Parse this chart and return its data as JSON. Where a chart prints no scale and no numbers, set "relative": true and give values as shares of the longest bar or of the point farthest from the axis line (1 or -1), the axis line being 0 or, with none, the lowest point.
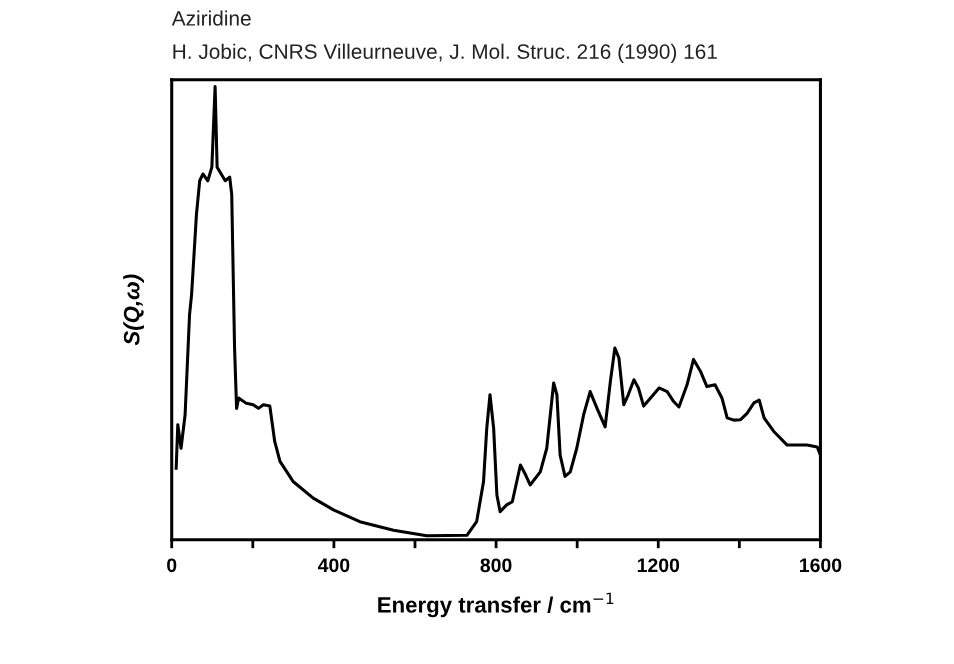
{
  "chart_data": {
    "type": "line",
    "title": "Aziridine",
    "subtitle": "H. Jobic, CNRS Villeurneuve, J. Mol. Struc. 216 (1990) 161",
    "xlabel": "Energy transfer / cm$^{−1}$",
    "ylabel": "S(Q,ω)",
    "relative": true,
    "xlim": [
      0,
      1600
    ],
    "xticks": [
      0,
      {
        "value": 200,
        "label": null
      },
      400,
      {
        "value": 600,
        "label": null
      },
      800,
      {
        "value": 1000,
        "label": null
      },
      1200,
      {
        "value": 1400,
        "label": null
      },
      1600
    ],
    "tick_labels": "x",
    "grid": false,
    "legend": false,
    "marker": "none",
    "line_style": "solid",
    "series": [
      {
        "color": "#000000",
        "x": [
          11,
          15,
          23,
          33,
          44,
          49,
          61,
          69,
          77,
          89,
          99,
          107,
          112,
          122,
          132,
          143,
          148,
          155,
          160,
          165,
          184,
          201,
          214,
          226,
          242,
          254,
          267,
          300,
          349,
          399,
          464,
          547,
          629,
          728,
          752,
          769,
          777,
          785,
          794,
          802,
          810,
          826,
          840,
          860,
          873,
          884,
          909,
          925,
          942,
          950,
          958,
          970,
          983,
          999,
          1016,
          1032,
          1049,
          1069,
          1082,
          1093,
          1103,
          1115,
          1126,
          1140,
          1151,
          1164,
          1181,
          1202,
          1222,
          1238,
          1251,
          1271,
          1287,
          1304,
          1320,
          1340,
          1357,
          1370,
          1386,
          1403,
          1419,
          1436,
          1449,
          1461,
          1485,
          1518,
          1567,
          1592,
          1600
        ],
        "values": [
          0.158,
          0.254,
          0.202,
          0.276,
          0.497,
          0.541,
          0.718,
          0.792,
          0.807,
          0.792,
          0.822,
          1,
          0.822,
          0.807,
          0.792,
          0.8,
          0.762,
          0.423,
          0.29,
          0.313,
          0.301,
          0.298,
          0.29,
          0.298,
          0.295,
          0.217,
          0.173,
          0.128,
          0.092,
          0.066,
          0.04,
          0.021,
          0.009,
          0.01,
          0.04,
          0.128,
          0.246,
          0.32,
          0.246,
          0.099,
          0.062,
          0.077,
          0.084,
          0.165,
          0.143,
          0.121,
          0.15,
          0.202,
          0.346,
          0.32,
          0.187,
          0.14,
          0.15,
          0.202,
          0.276,
          0.327,
          0.29,
          0.249,
          0.35,
          0.423,
          0.401,
          0.298,
          0.32,
          0.353,
          0.335,
          0.295,
          0.313,
          0.335,
          0.327,
          0.305,
          0.293,
          0.342,
          0.398,
          0.372,
          0.338,
          0.342,
          0.313,
          0.269,
          0.264,
          0.265,
          0.279,
          0.302,
          0.308,
          0.269,
          0.239,
          0.209,
          0.209,
          0.205,
          0.187
        ]
      }
    ]
  }
}
